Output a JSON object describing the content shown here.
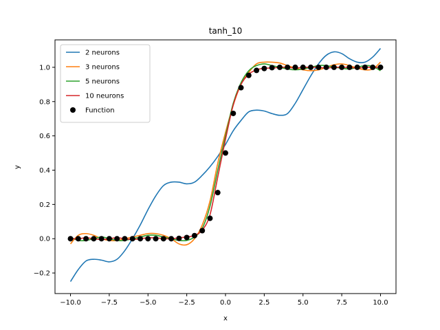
{
  "chart_data": {
    "type": "line",
    "title": "tanh_10",
    "xlabel": "x",
    "ylabel": "y",
    "xlim": [
      -11.0,
      11.0
    ],
    "ylim": [
      -0.32,
      1.16
    ],
    "xticks": [
      -10.0,
      -7.5,
      -5.0,
      -2.5,
      0.0,
      2.5,
      5.0,
      7.5,
      10.0
    ],
    "xtick_labels": [
      "−10.0",
      "−7.5",
      "−5.0",
      "−2.5",
      "0.0",
      "2.5",
      "5.0",
      "7.5",
      "10.0"
    ],
    "yticks": [
      -0.2,
      0.0,
      0.2,
      0.4,
      0.6,
      0.8,
      1.0
    ],
    "ytick_labels": [
      "−0.2",
      "0.0",
      "0.2",
      "0.4",
      "0.6",
      "0.8",
      "1.0"
    ],
    "grid": false,
    "legend_position": "top-left",
    "series": [
      {
        "name": "2 neurons",
        "color": "#1f77b4",
        "x": [
          -10,
          -9.5,
          -9,
          -8.5,
          -8,
          -7.5,
          -7,
          -6.5,
          -6,
          -5.5,
          -5,
          -4.5,
          -4,
          -3.5,
          -3,
          -2.5,
          -2,
          -1.5,
          -1,
          -0.5,
          0,
          0.5,
          1,
          1.5,
          2,
          2.5,
          3,
          3.5,
          4,
          4.5,
          5,
          5.5,
          6,
          6.5,
          7,
          7.5,
          8,
          8.5,
          9,
          9.5,
          10
        ],
        "y": [
          -0.25,
          -0.18,
          -0.13,
          -0.12,
          -0.125,
          -0.135,
          -0.12,
          -0.07,
          0.0,
          0.08,
          0.17,
          0.25,
          0.31,
          0.33,
          0.33,
          0.32,
          0.33,
          0.37,
          0.42,
          0.48,
          0.55,
          0.63,
          0.69,
          0.74,
          0.75,
          0.745,
          0.73,
          0.72,
          0.73,
          0.79,
          0.87,
          0.95,
          1.02,
          1.07,
          1.09,
          1.08,
          1.05,
          1.03,
          1.03,
          1.06,
          1.11
        ]
      },
      {
        "name": "3 neurons",
        "color": "#ff7f0e",
        "x": [
          -10,
          -9.5,
          -9,
          -8.5,
          -8,
          -7.5,
          -7,
          -6.5,
          -6,
          -5.5,
          -5,
          -4.5,
          -4,
          -3.5,
          -3,
          -2.5,
          -2,
          -1.5,
          -1,
          -0.5,
          0,
          0.5,
          1,
          1.5,
          2,
          2.5,
          3,
          3.5,
          4,
          4.5,
          5,
          5.5,
          6,
          6.5,
          7,
          7.5,
          8,
          8.5,
          9,
          9.5,
          10
        ],
        "y": [
          -0.03,
          0.02,
          0.03,
          0.02,
          0.0,
          -0.01,
          -0.01,
          0.0,
          0.01,
          0.02,
          0.03,
          0.03,
          0.02,
          0.0,
          -0.03,
          -0.035,
          0.0,
          0.08,
          0.22,
          0.44,
          0.62,
          0.78,
          0.9,
          0.97,
          1.02,
          1.03,
          1.03,
          1.025,
          1.01,
          0.995,
          0.985,
          0.98,
          0.985,
          1.0,
          1.015,
          1.02,
          1.01,
          0.995,
          0.985,
          0.99,
          1.03
        ]
      },
      {
        "name": "5 neurons",
        "color": "#2ca02c",
        "x": [
          -10,
          -9.5,
          -9,
          -8.5,
          -8,
          -7.5,
          -7,
          -6.5,
          -6,
          -5.5,
          -5,
          -4.5,
          -4,
          -3.5,
          -3,
          -2.5,
          -2,
          -1.5,
          -1,
          -0.5,
          0,
          0.5,
          1,
          1.5,
          2,
          2.5,
          3,
          3.5,
          4,
          4.5,
          5,
          5.5,
          6,
          6.5,
          7,
          7.5,
          8,
          8.5,
          9,
          9.5,
          10
        ],
        "y": [
          0.01,
          -0.01,
          -0.01,
          0.0,
          0.01,
          0.0,
          -0.01,
          -0.01,
          0.0,
          0.01,
          0.02,
          0.02,
          0.01,
          0.0,
          -0.01,
          -0.01,
          0.01,
          0.06,
          0.19,
          0.4,
          0.6,
          0.79,
          0.91,
          0.98,
          1.01,
          1.02,
          1.01,
          1.0,
          0.99,
          0.985,
          0.99,
          1.0,
          1.01,
          1.01,
          1.0,
          0.995,
          0.99,
          1.0,
          1.01,
          1.005,
          0.98
        ]
      },
      {
        "name": "10 neurons",
        "color": "#d62728",
        "x": [
          -10,
          -9.5,
          -9,
          -8.5,
          -8,
          -7.5,
          -7,
          -6.5,
          -6,
          -5.5,
          -5,
          -4.5,
          -4,
          -3.5,
          -3,
          -2.5,
          -2,
          -1.5,
          -1,
          -0.5,
          0,
          0.5,
          1,
          1.5,
          2,
          2.5,
          3,
          3.5,
          4,
          4.5,
          5,
          5.5,
          6,
          6.5,
          7,
          7.5,
          8,
          8.5,
          9,
          9.5,
          10
        ],
        "y": [
          0.0,
          0.0,
          0.005,
          0.0,
          -0.005,
          0.0,
          0.005,
          0.0,
          -0.005,
          0.0,
          0.005,
          0.005,
          0.0,
          0.0,
          0.005,
          0.01,
          0.02,
          0.05,
          0.14,
          0.36,
          0.58,
          0.78,
          0.9,
          0.96,
          0.985,
          0.995,
          0.995,
          1.0,
          1.0,
          0.995,
          1.0,
          1.0,
          1.0,
          0.995,
          1.0,
          1.0,
          1.0,
          0.995,
          1.0,
          1.0,
          1.0
        ]
      },
      {
        "name": "Function",
        "color": "#000000",
        "marker": "circle",
        "x": [
          -10.0,
          -9.5,
          -9.0,
          -8.5,
          -8.0,
          -7.5,
          -7.0,
          -6.5,
          -6.0,
          -5.5,
          -5.0,
          -4.5,
          -4.0,
          -3.5,
          -3.0,
          -2.5,
          -2.0,
          -1.5,
          -1.0,
          -0.5,
          0.0,
          0.5,
          1.0,
          1.5,
          2.0,
          2.5,
          3.0,
          3.5,
          4.0,
          4.5,
          5.0,
          5.5,
          6.0,
          6.5,
          7.0,
          7.5,
          8.0,
          8.5,
          9.0,
          9.5,
          10.0
        ],
        "y": [
          0.0,
          0.0,
          0.0,
          0.0,
          0.0,
          0.0,
          0.0,
          0.0,
          0.0,
          0.0,
          0.0,
          0.0,
          0.0,
          0.0,
          0.002,
          0.007,
          0.018,
          0.047,
          0.119,
          0.269,
          0.5,
          0.731,
          0.881,
          0.953,
          0.982,
          0.993,
          0.998,
          1.0,
          1.0,
          1.0,
          1.0,
          1.0,
          1.0,
          1.0,
          1.0,
          1.0,
          1.0,
          1.0,
          1.0,
          1.0,
          1.0
        ]
      }
    ]
  }
}
